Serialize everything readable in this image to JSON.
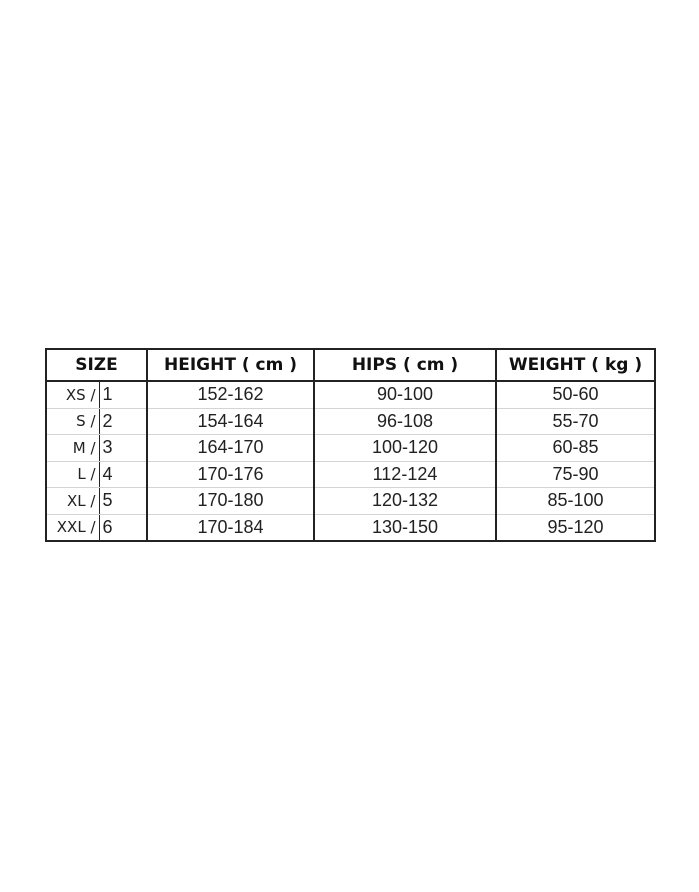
{
  "table": {
    "headers": [
      "SIZE",
      "HEIGHT ( cm )",
      "HIPS ( cm )",
      "WEIGHT ( kg )"
    ],
    "rows": [
      {
        "size": "XS /",
        "num": "1",
        "height": "152-162",
        "hips": "90-100",
        "weight": "50-60"
      },
      {
        "size": "S /",
        "num": "2",
        "height": "154-164",
        "hips": "96-108",
        "weight": "55-70"
      },
      {
        "size": "M /",
        "num": "3",
        "height": "164-170",
        "hips": "100-120",
        "weight": "60-85"
      },
      {
        "size": "L /",
        "num": "4",
        "height": "170-176",
        "hips": "112-124",
        "weight": "75-90"
      },
      {
        "size": "XL /",
        "num": "5",
        "height": "170-180",
        "hips": "120-132",
        "weight": "85-100"
      },
      {
        "size": "XXL /",
        "num": "6",
        "height": "170-184",
        "hips": "130-150",
        "weight": "95-120"
      }
    ]
  }
}
